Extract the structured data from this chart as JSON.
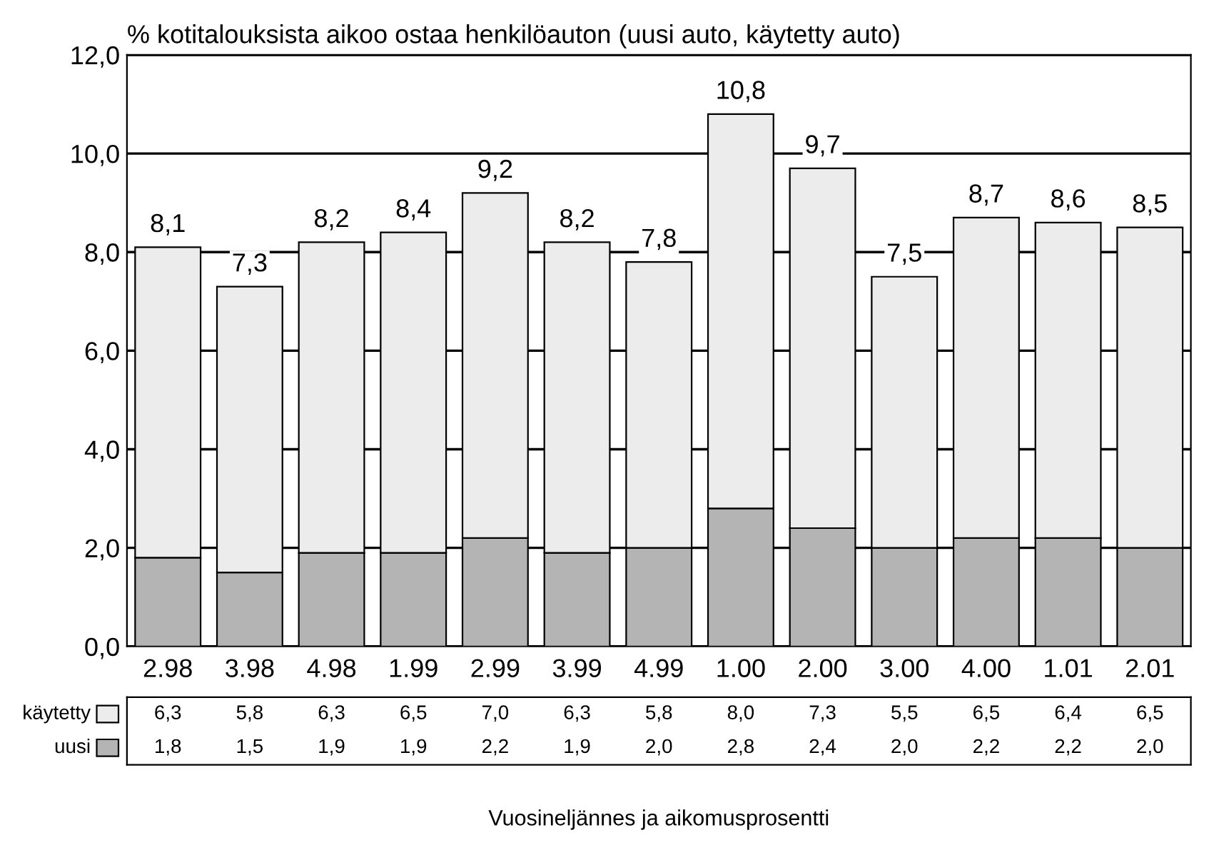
{
  "chart_data": {
    "type": "bar",
    "stacked": true,
    "title": "% kotitalouksista aikoo ostaa henkilöauton (uusi auto, käytetty auto)",
    "annotations": [
      "Vuosineljännes ja aikomusprosentti"
    ],
    "categories": [
      "2.98",
      "3.98",
      "4.98",
      "1.99",
      "2.99",
      "3.99",
      "4.99",
      "1.00",
      "2.00",
      "3.00",
      "4.00",
      "1.01",
      "2.01"
    ],
    "series": [
      {
        "name": "uusi",
        "color": "#b4b4b4",
        "values": [
          1.8,
          1.5,
          1.9,
          1.9,
          2.2,
          1.9,
          2.0,
          2.8,
          2.4,
          2.0,
          2.2,
          2.2,
          2.0
        ],
        "value_labels": [
          "1,8",
          "1,5",
          "1,9",
          "1,9",
          "2,2",
          "1,9",
          "2,0",
          "2,8",
          "2,4",
          "2,0",
          "2,2",
          "2,2",
          "2,0"
        ]
      },
      {
        "name": "käytetty",
        "color": "#ececec",
        "values": [
          6.3,
          5.8,
          6.3,
          6.5,
          7.0,
          6.3,
          5.8,
          8.0,
          7.3,
          5.5,
          6.5,
          6.4,
          6.5
        ],
        "value_labels": [
          "6,3",
          "5,8",
          "6,3",
          "6,5",
          "7,0",
          "6,3",
          "5,8",
          "8,0",
          "7,3",
          "5,5",
          "6,5",
          "6,4",
          "6,5"
        ]
      }
    ],
    "totals": [
      "8,1",
      "7,3",
      "8,2",
      "8,4",
      "9,2",
      "8,2",
      "7,8",
      "10,8",
      "9,7",
      "7,5",
      "8,7",
      "8,6",
      "8,5"
    ],
    "ylim": [
      0,
      12
    ],
    "yticks": [
      {
        "value": 0,
        "label": "0,0"
      },
      {
        "value": 2,
        "label": "2,0"
      },
      {
        "value": 4,
        "label": "4,0"
      },
      {
        "value": 6,
        "label": "6,0"
      },
      {
        "value": 8,
        "label": "8,0"
      },
      {
        "value": 10,
        "label": "10,0"
      },
      {
        "value": 12,
        "label": "12,0"
      }
    ],
    "grid": "y",
    "legend": "bottom left"
  }
}
